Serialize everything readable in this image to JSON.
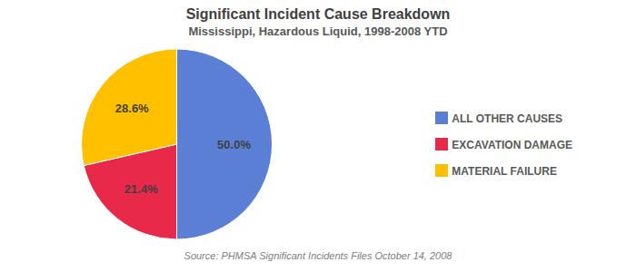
{
  "chart_data": {
    "type": "pie",
    "title": "Significant Incident Cause Breakdown",
    "subtitle": "Mississippi, Hazardous Liquid, 1998-2008 YTD",
    "annotations": [
      "Source: PHMSA Significant Incidents Files October 14, 2008"
    ],
    "categories": [
      "ALL OTHER CAUSES",
      "EXCAVATION DAMAGE",
      "MATERIAL FAILURE"
    ],
    "values": [
      50.0,
      21.4,
      28.6
    ],
    "value_labels": [
      "50.0%",
      "21.4%",
      "28.6%"
    ],
    "colors": [
      "#5B7FD4",
      "#E8294A",
      "#FFC000"
    ],
    "data_labels": true,
    "legend": "right"
  }
}
